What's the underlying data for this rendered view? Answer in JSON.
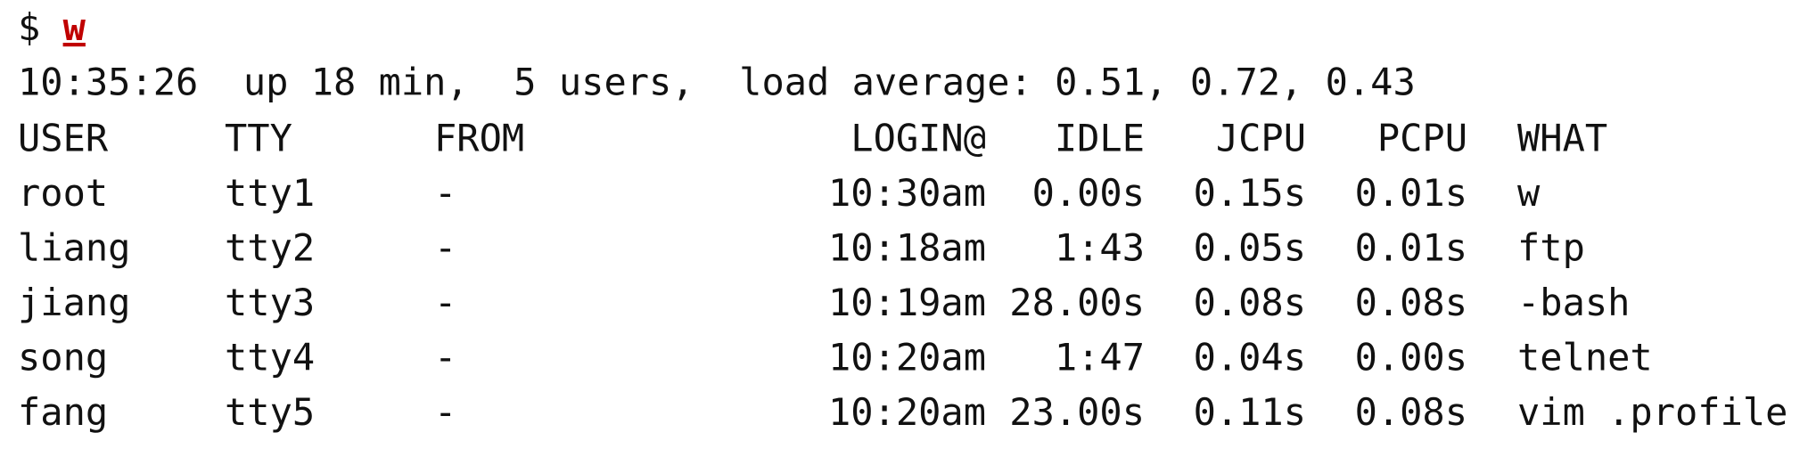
{
  "prompt": "$",
  "command": "w",
  "uptime_line": "10:35:26  up 18 min,  5 users,  load average: 0.51, 0.72, 0.43",
  "table": {
    "header": [
      "USER",
      "TTY",
      "FROM",
      "LOGIN@",
      "IDLE",
      "JCPU",
      "PCPU",
      "WHAT"
    ],
    "rows": [
      [
        "root",
        "tty1",
        "-",
        "10:30am",
        "0.00s",
        "0.15s",
        "0.01s",
        "w"
      ],
      [
        "liang",
        "tty2",
        "-",
        "10:18am",
        "1:43",
        "0.05s",
        "0.01s",
        "ftp"
      ],
      [
        "jiang",
        "tty3",
        "-",
        "10:19am",
        "28.00s",
        "0.08s",
        "0.08s",
        "-bash"
      ],
      [
        "song",
        "tty4",
        "-",
        "10:20am",
        "1:47",
        "0.04s",
        "0.00s",
        "telnet"
      ],
      [
        "fang",
        "tty5",
        "-",
        "10:20am",
        "23.00s",
        "0.11s",
        "0.08s",
        "vim .profile"
      ]
    ]
  }
}
